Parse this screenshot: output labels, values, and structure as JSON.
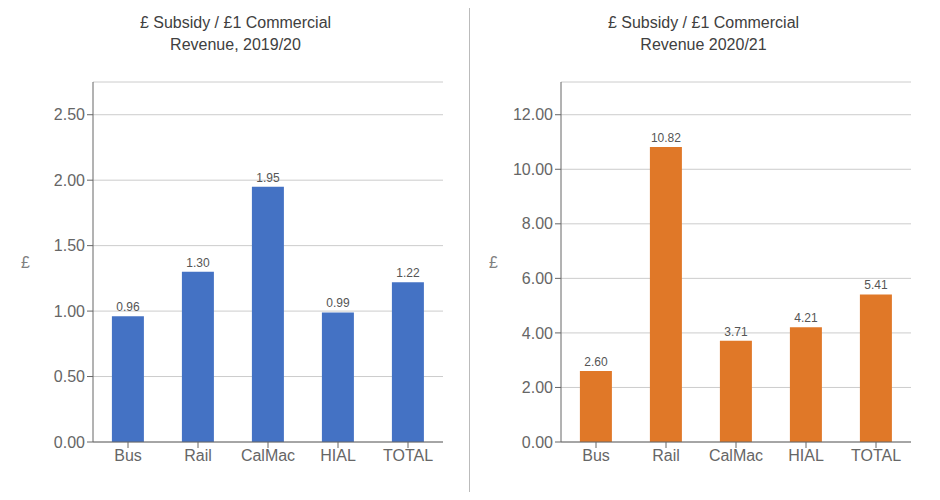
{
  "chart_data": [
    {
      "type": "bar",
      "title": "£ Subsidy / £1 Commercial\nRevenue, 2019/20",
      "categories": [
        "Bus",
        "Rail",
        "CalMac",
        "HIAL",
        "TOTAL"
      ],
      "values": [
        0.96,
        1.3,
        1.95,
        0.99,
        1.22
      ],
      "value_labels": [
        "0.96",
        "1.30",
        "1.95",
        "0.99",
        "1.22"
      ],
      "color": "#4472C4",
      "ylabel": "£",
      "ylim": [
        0,
        2.75
      ],
      "yticks": [
        {
          "value": 0,
          "label": "0.00"
        },
        {
          "value": 0.5,
          "label": "0.50"
        },
        {
          "value": 1,
          "label": "1.00"
        },
        {
          "value": 1.5,
          "label": "1.50"
        },
        {
          "value": 2,
          "label": "2.00"
        },
        {
          "value": 2.5,
          "label": "2.50"
        }
      ],
      "grid": true,
      "data_labels": true
    },
    {
      "type": "bar",
      "title": "£ Subsidy / £1 Commercial\nRevenue 2020/21",
      "categories": [
        "Bus",
        "Rail",
        "CalMac",
        "HIAL",
        "TOTAL"
      ],
      "values": [
        2.6,
        10.82,
        3.71,
        4.21,
        5.41
      ],
      "value_labels": [
        "2.60",
        "10.82",
        "3.71",
        "4.21",
        "5.41"
      ],
      "color": "#E07828",
      "ylabel": "£",
      "ylim": [
        0,
        13.2
      ],
      "yticks": [
        {
          "value": 0,
          "label": "0.00"
        },
        {
          "value": 2,
          "label": "2.00"
        },
        {
          "value": 4,
          "label": "4.00"
        },
        {
          "value": 6,
          "label": "6.00"
        },
        {
          "value": 8,
          "label": "8.00"
        },
        {
          "value": 10,
          "label": "10.00"
        },
        {
          "value": 12,
          "label": "12.00"
        }
      ],
      "grid": true,
      "data_labels": true
    }
  ]
}
